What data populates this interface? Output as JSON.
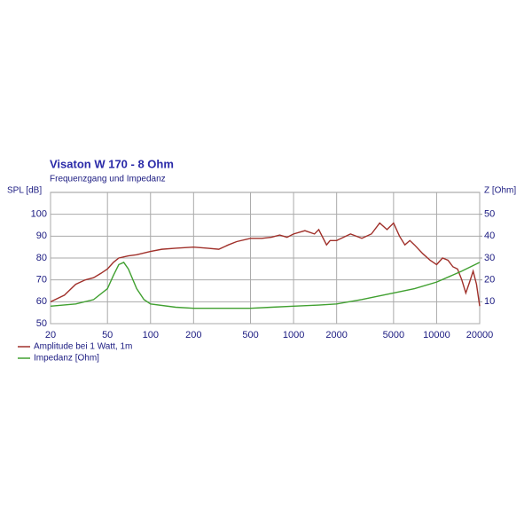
{
  "chart_data": {
    "type": "line",
    "title": "Visaton W 170 - 8 Ohm",
    "subtitle": "Frequenzgang und Impedanz",
    "ylabel": "SPL [dB]",
    "y2label": "Z [Ohm]",
    "xscale": "log",
    "grid": true,
    "xlim": [
      20,
      20000
    ],
    "xticks": [
      20,
      50,
      100,
      200,
      500,
      1000,
      2000,
      5000,
      10000,
      20000
    ],
    "ylim": [
      50,
      110
    ],
    "yticks": [
      50,
      60,
      70,
      80,
      90,
      100
    ],
    "y2lim": [
      0,
      60
    ],
    "y2ticks": [
      10,
      20,
      30,
      40,
      50
    ],
    "legend": "bottom-left",
    "series": [
      {
        "name": "Amplitude bei 1 Watt, 1m",
        "color": "#a0302a",
        "x": [
          20,
          25,
          30,
          35,
          40,
          45,
          50,
          55,
          60,
          70,
          80,
          100,
          120,
          150,
          200,
          250,
          300,
          350,
          400,
          500,
          600,
          700,
          800,
          900,
          1000,
          1200,
          1400,
          1500,
          1700,
          1800,
          2000,
          2500,
          3000,
          3500,
          4000,
          4500,
          5000,
          5500,
          6000,
          6500,
          7000,
          8000,
          9000,
          10000,
          11000,
          12000,
          13000,
          14000,
          15000,
          16000,
          17000,
          18000,
          19000,
          20000
        ],
        "values": [
          60,
          63,
          68,
          70,
          71,
          73,
          75,
          78,
          80,
          81,
          81.5,
          83,
          84,
          84.5,
          85,
          84.5,
          84,
          86,
          87.5,
          89,
          89,
          89.5,
          90.5,
          89.5,
          91,
          92.5,
          91,
          93,
          86,
          88,
          88,
          91,
          89,
          91,
          96,
          93,
          96,
          90,
          86,
          88,
          86,
          82,
          79,
          77,
          80,
          79,
          76,
          75,
          70,
          64,
          69,
          74,
          68,
          58
        ]
      },
      {
        "name": "Impedanz [Ohm]",
        "color": "#40a030",
        "axis": "y2",
        "x": [
          20,
          30,
          40,
          50,
          55,
          60,
          65,
          70,
          80,
          90,
          100,
          150,
          200,
          300,
          400,
          500,
          700,
          1000,
          1500,
          2000,
          3000,
          5000,
          7000,
          10000,
          15000,
          20000
        ],
        "values": [
          8,
          9,
          11,
          16,
          22,
          27,
          28,
          25,
          16,
          11,
          9,
          7.5,
          7,
          7,
          7,
          7,
          7.5,
          8,
          8.5,
          9,
          11,
          14,
          16,
          19,
          24,
          28
        ]
      }
    ]
  }
}
